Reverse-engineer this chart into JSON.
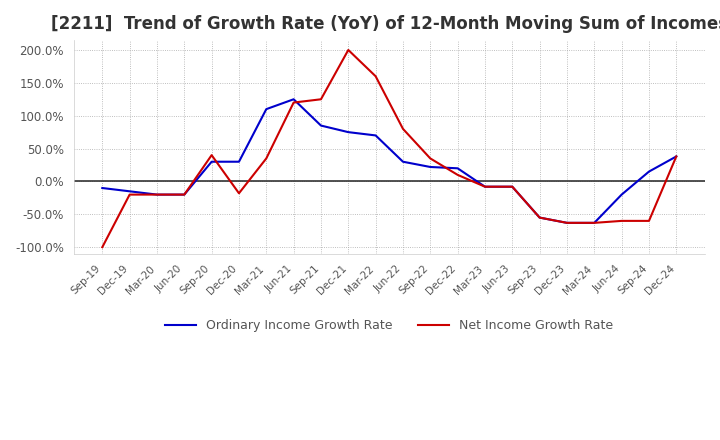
{
  "title": "[2211]  Trend of Growth Rate (YoY) of 12-Month Moving Sum of Incomes",
  "title_fontsize": 12,
  "ylim": [
    -110,
    215
  ],
  "yticks": [
    -100,
    -50,
    0,
    50,
    100,
    150,
    200
  ],
  "background_color": "#ffffff",
  "grid_color": "#aaaaaa",
  "legend_labels": [
    "Ordinary Income Growth Rate",
    "Net Income Growth Rate"
  ],
  "dates": [
    "Sep-19",
    "Dec-19",
    "Mar-20",
    "Jun-20",
    "Sep-20",
    "Dec-20",
    "Mar-21",
    "Jun-21",
    "Sep-21",
    "Dec-21",
    "Mar-22",
    "Jun-22",
    "Sep-22",
    "Dec-22",
    "Mar-23",
    "Jun-23",
    "Sep-23",
    "Dec-23",
    "Mar-24",
    "Jun-24",
    "Sep-24",
    "Dec-24"
  ],
  "ordinary_income": [
    -10,
    -15,
    -20,
    -20,
    30,
    30,
    110,
    125,
    85,
    75,
    70,
    30,
    22,
    20,
    -8,
    -8,
    -55,
    -63,
    -63,
    -20,
    15,
    38
  ],
  "net_income": [
    -100,
    -20,
    -20,
    -20,
    40,
    -18,
    35,
    120,
    125,
    200,
    160,
    80,
    35,
    10,
    -8,
    -8,
    -55,
    -63,
    -63,
    -60,
    -60,
    38
  ],
  "ordinary_color": "#0000cc",
  "net_color": "#cc0000",
  "line_width": 1.5
}
